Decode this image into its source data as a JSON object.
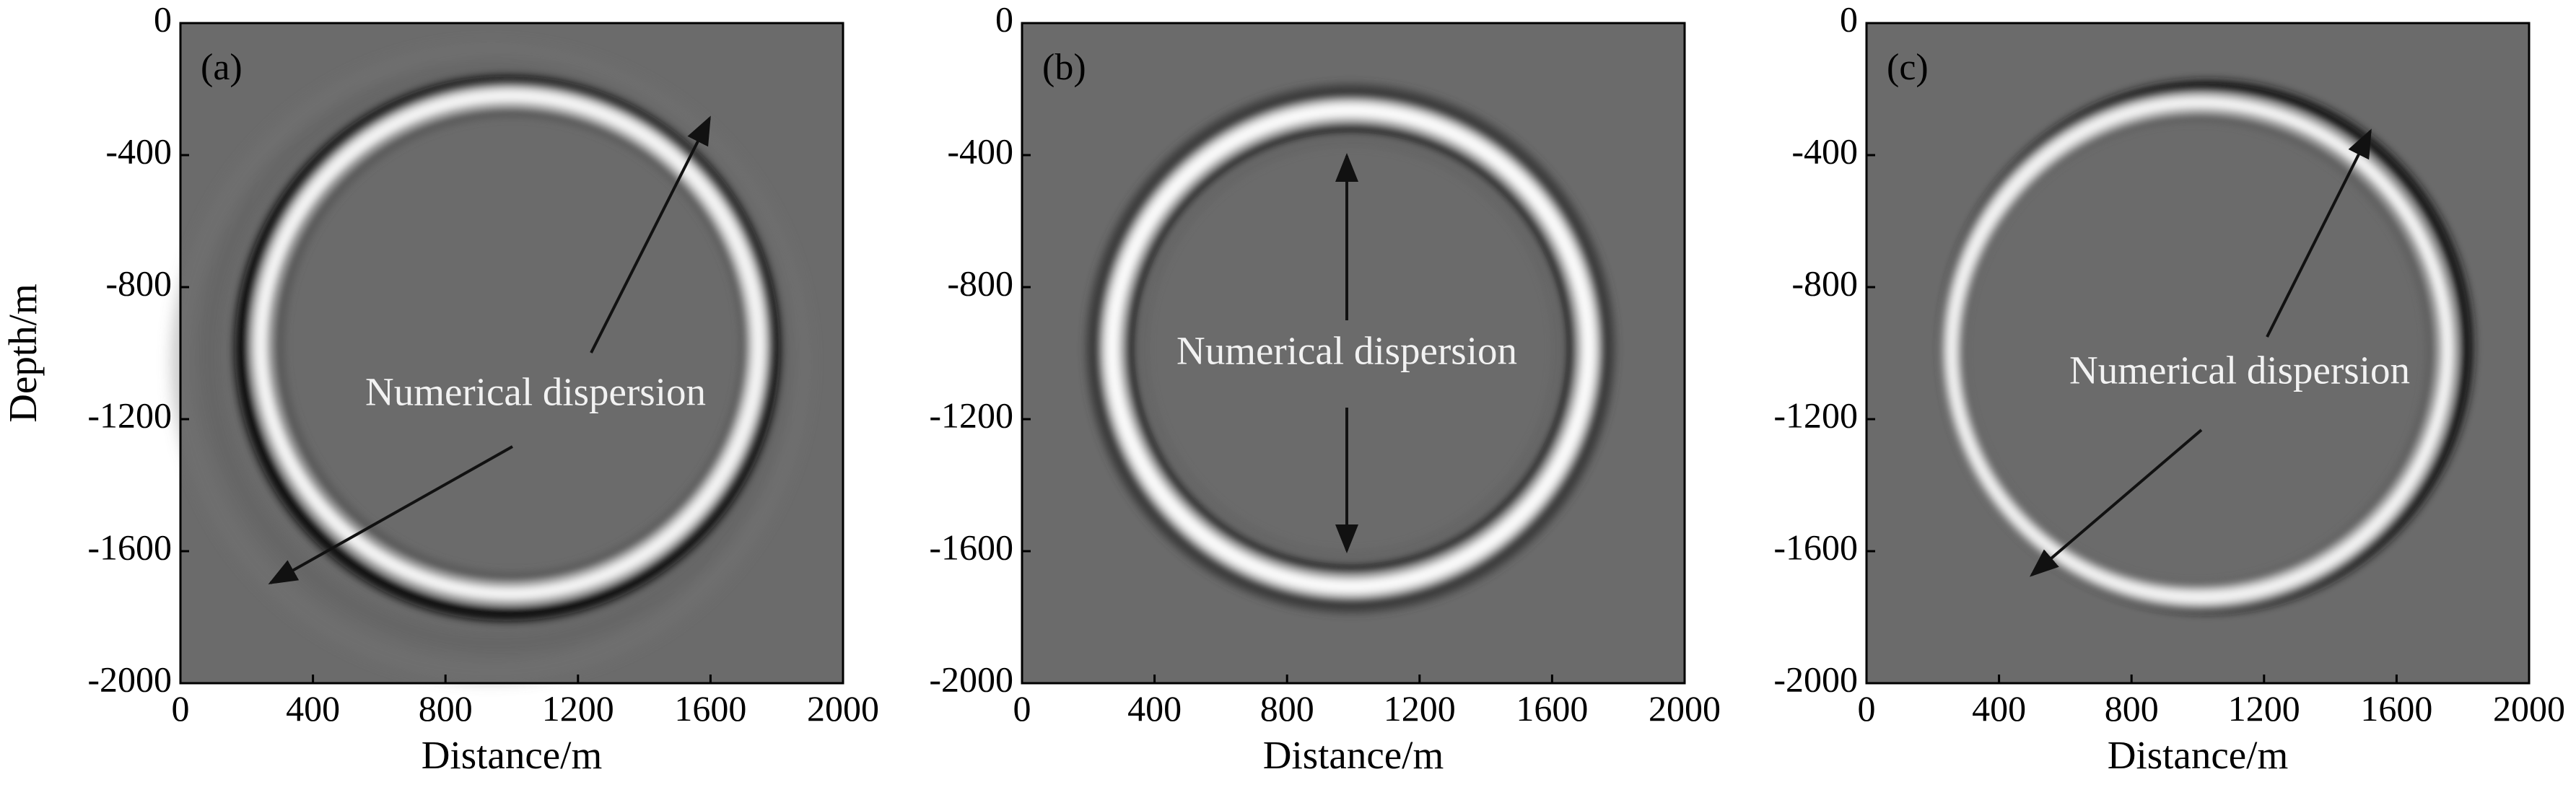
{
  "chart_data": [
    {
      "type": "image",
      "panel_label": "(a)",
      "annotation": "Numerical dispersion",
      "xlabel": "Distance/m",
      "ylabel": "Depth/m",
      "xlim": [
        0,
        2000
      ],
      "ylim": [
        -2000,
        0
      ],
      "xticks": [
        0,
        400,
        800,
        1200,
        1600,
        2000
      ],
      "yticks": [
        0,
        -400,
        -800,
        -1200,
        -1600,
        -2000
      ]
    },
    {
      "type": "image",
      "panel_label": "(b)",
      "annotation": "Numerical dispersion",
      "xlabel": "Distance/m",
      "xlim": [
        0,
        2000
      ],
      "ylim": [
        -2000,
        0
      ],
      "xticks": [
        0,
        400,
        800,
        1200,
        1600,
        2000
      ],
      "yticks": [
        0,
        -400,
        -800,
        -1200,
        -1600,
        -2000
      ]
    },
    {
      "type": "image",
      "panel_label": "(c)",
      "annotation": "Numerical dispersion",
      "xlabel": "Distance/m",
      "xlim": [
        0,
        2000
      ],
      "ylim": [
        -2000,
        0
      ],
      "xticks": [
        0,
        400,
        800,
        1200,
        1600,
        2000
      ],
      "yticks": [
        0,
        -400,
        -800,
        -1200,
        -1600,
        -2000
      ]
    }
  ]
}
